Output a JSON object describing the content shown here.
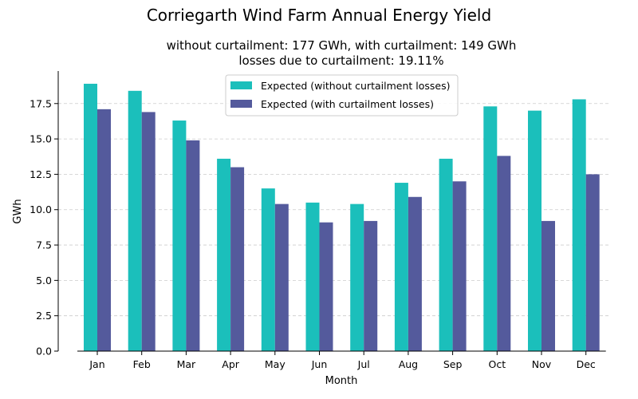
{
  "chart_data": {
    "type": "bar",
    "title": "Corriegarth Wind Farm Annual Energy Yield",
    "subtitle_line1": "without curtailment: 177 GWh, with curtailment: 149 GWh",
    "subtitle_line2": "losses due to curtailment: 19.11%",
    "xlabel": "Month",
    "ylabel": "GWh",
    "ylim": [
      0,
      19.8
    ],
    "yticks": [
      0.0,
      2.5,
      5.0,
      7.5,
      10.0,
      12.5,
      15.0,
      17.5
    ],
    "ytick_labels": [
      "0.0",
      "2.5",
      "5.0",
      "7.5",
      "10.0",
      "12.5",
      "15.0",
      "17.5"
    ],
    "grid": "horizontal dashed",
    "legend_placement": "top-center",
    "categories": [
      "Jan",
      "Feb",
      "Mar",
      "Apr",
      "May",
      "Jun",
      "Jul",
      "Aug",
      "Sep",
      "Oct",
      "Nov",
      "Dec"
    ],
    "series": [
      {
        "name": "Expected (without curtailment losses)",
        "color": "#1bbfbb",
        "values": [
          18.9,
          18.4,
          16.3,
          13.6,
          11.5,
          10.5,
          10.4,
          11.9,
          13.6,
          17.3,
          17.0,
          17.8
        ]
      },
      {
        "name": "Expected (with curtailment losses)",
        "color": "#545a9c",
        "values": [
          17.1,
          16.9,
          14.9,
          13.0,
          10.4,
          9.1,
          9.2,
          10.9,
          12.0,
          13.8,
          9.2,
          12.5
        ]
      }
    ]
  }
}
